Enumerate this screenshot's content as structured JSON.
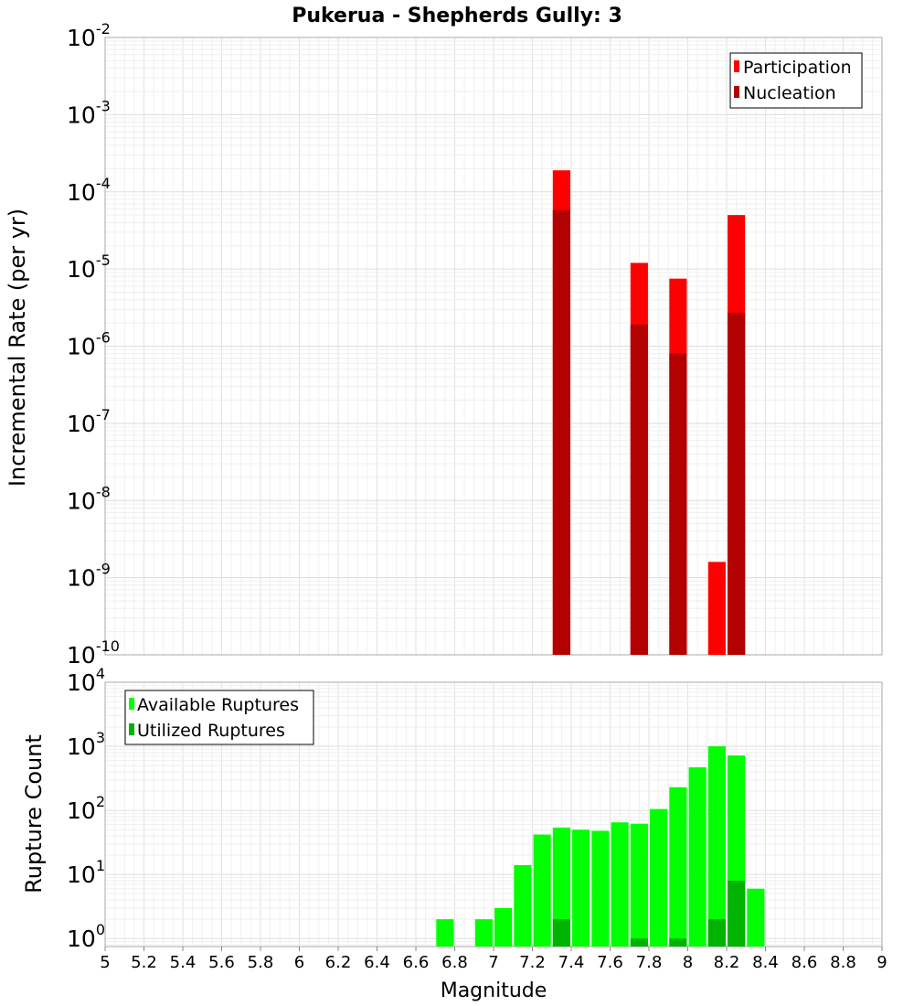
{
  "chart_data": [
    {
      "type": "bar",
      "title": "Pukerua - Shepherds Gully: 3",
      "ylabel": "Incremental Rate (per yr)",
      "xlabel": "",
      "xlim": [
        5,
        9
      ],
      "yscale": "log",
      "ylim": [
        1e-10,
        0.01
      ],
      "ytick_labels": [
        {
          "base": "10",
          "exp": "-2"
        },
        {
          "base": "10",
          "exp": "-3"
        },
        {
          "base": "10",
          "exp": "-4"
        },
        {
          "base": "10",
          "exp": "-5"
        },
        {
          "base": "10",
          "exp": "-6"
        },
        {
          "base": "10",
          "exp": "-7"
        },
        {
          "base": "10",
          "exp": "-8"
        },
        {
          "base": "10",
          "exp": "-9"
        },
        {
          "base": "10",
          "exp": "-10"
        }
      ],
      "grid": true,
      "legend_position": "top-right",
      "series": [
        {
          "name": "Participation",
          "color": "#ff0000",
          "points": [
            [
              7.35,
              0.00019
            ],
            [
              7.75,
              1.2e-05
            ],
            [
              7.95,
              7.5e-06
            ],
            [
              8.15,
              1.6e-09
            ],
            [
              8.25,
              5e-05
            ]
          ]
        },
        {
          "name": "Nucleation",
          "color": "#b30000",
          "points": [
            [
              7.35,
              5.8e-05
            ],
            [
              7.75,
              1.9e-06
            ],
            [
              7.95,
              8e-07
            ],
            [
              8.25,
              2.7e-06
            ]
          ]
        }
      ]
    },
    {
      "type": "bar",
      "title": "",
      "ylabel": "Rupture Count",
      "xlabel": "Magnitude",
      "xlim": [
        5,
        9
      ],
      "yscale": "log",
      "ylim": [
        0.75,
        10000
      ],
      "ytick_labels": [
        {
          "base": "10",
          "exp": "4"
        },
        {
          "base": "10",
          "exp": "3"
        },
        {
          "base": "10",
          "exp": "2"
        },
        {
          "base": "10",
          "exp": "1"
        },
        {
          "base": "10",
          "exp": "0"
        }
      ],
      "xtick_labels": [
        "5",
        "5.2",
        "5.4",
        "5.6",
        "5.8",
        "6",
        "6.2",
        "6.4",
        "6.6",
        "6.8",
        "7",
        "7.2",
        "7.4",
        "7.6",
        "7.8",
        "8",
        "8.2",
        "8.4",
        "8.6",
        "8.8",
        "9"
      ],
      "grid": true,
      "legend_position": "top-left",
      "series": [
        {
          "name": "Available Ruptures",
          "color": "#00ff00",
          "points": [
            [
              6.75,
              2
            ],
            [
              6.95,
              2
            ],
            [
              7.05,
              3
            ],
            [
              7.15,
              14
            ],
            [
              7.25,
              42
            ],
            [
              7.35,
              54
            ],
            [
              7.45,
              50
            ],
            [
              7.55,
              48
            ],
            [
              7.65,
              65
            ],
            [
              7.75,
              62
            ],
            [
              7.85,
              105
            ],
            [
              7.95,
              230
            ],
            [
              8.05,
              470
            ],
            [
              8.15,
              1000
            ],
            [
              8.25,
              720
            ],
            [
              8.35,
              6
            ]
          ]
        },
        {
          "name": "Utilized Ruptures",
          "color": "#00b300",
          "points": [
            [
              7.35,
              2
            ],
            [
              7.75,
              1
            ],
            [
              7.95,
              1
            ],
            [
              8.15,
              2
            ],
            [
              8.25,
              8
            ]
          ]
        }
      ]
    }
  ]
}
